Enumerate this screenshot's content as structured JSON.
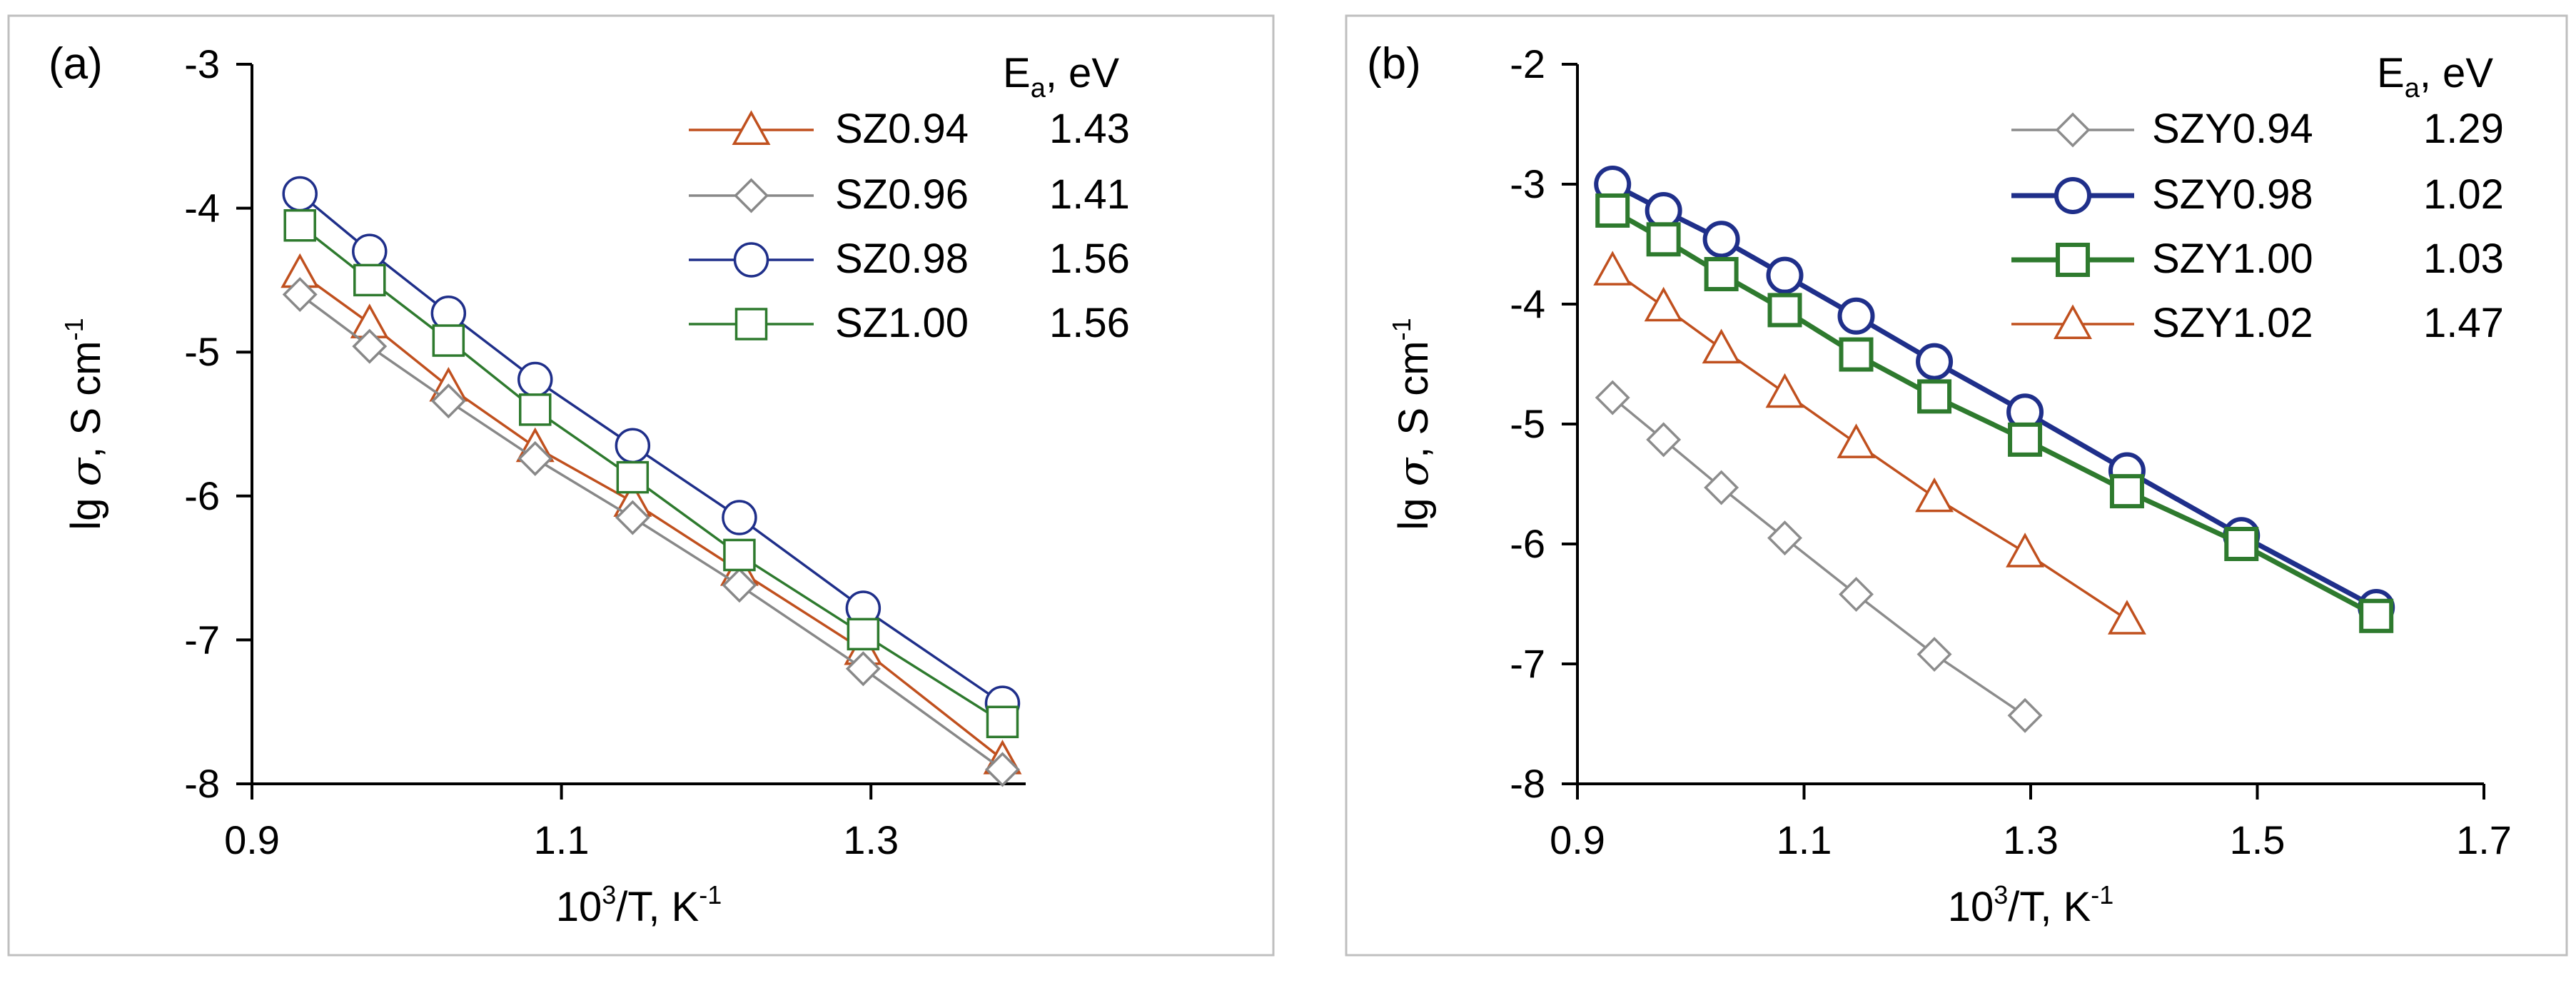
{
  "chart_data": [
    {
      "type": "line",
      "panel_label": "(a)",
      "xlabel": "10³/T, K⁻¹",
      "xlabel_base": "10",
      "xlabel_sup": "3",
      "xlabel_mid": "/T, K",
      "xlabel_sup2": "-1",
      "ylabel": "lg σ, S cm⁻¹",
      "ylabel_prefix": "lg ",
      "ylabel_sigma": "σ",
      "ylabel_unit": ", S cm",
      "ylabel_sup": "-1",
      "xlim": [
        0.9,
        1.4
      ],
      "ylim": [
        -8,
        -3
      ],
      "xticks": [
        "0.9",
        "1.1",
        "1.3"
      ],
      "xtick_values": [
        0.9,
        1.1,
        1.3
      ],
      "yticks": [
        "-3",
        "-4",
        "-5",
        "-6",
        "-7",
        "-8"
      ],
      "ytick_values": [
        -3,
        -4,
        -5,
        -6,
        -7,
        -8
      ],
      "legend_title_base": "E",
      "legend_title_sub": "a",
      "legend_title_rest": ", eV",
      "series": [
        {
          "name": "SZ0.94",
          "ea": "1.43",
          "color": "#c0501e",
          "marker": "triangle",
          "bold": false,
          "x": [
            0.931,
            0.976,
            1.027,
            1.083,
            1.146,
            1.215,
            1.295,
            1.385
          ],
          "y": [
            -4.45,
            -4.8,
            -5.24,
            -5.66,
            -6.04,
            -6.52,
            -7.07,
            -7.83
          ]
        },
        {
          "name": "SZ0.96",
          "ea": "1.41",
          "color": "#888888",
          "marker": "diamond",
          "bold": false,
          "x": [
            0.931,
            0.976,
            1.027,
            1.083,
            1.146,
            1.215,
            1.295,
            1.385
          ],
          "y": [
            -4.6,
            -4.96,
            -5.34,
            -5.74,
            -6.15,
            -6.62,
            -7.2,
            -7.9
          ]
        },
        {
          "name": "SZ0.98",
          "ea": "1.56",
          "color": "#1f2f8a",
          "marker": "circle",
          "bold": false,
          "x": [
            0.931,
            0.976,
            1.027,
            1.083,
            1.146,
            1.215,
            1.295,
            1.385
          ],
          "y": [
            -3.9,
            -4.3,
            -4.73,
            -5.19,
            -5.65,
            -6.15,
            -6.78,
            -7.44
          ]
        },
        {
          "name": "SZ1.00",
          "ea": "1.56",
          "color": "#2e7a2e",
          "marker": "square",
          "bold": false,
          "x": [
            0.931,
            0.976,
            1.027,
            1.083,
            1.146,
            1.215,
            1.295,
            1.385
          ],
          "y": [
            -4.12,
            -4.5,
            -4.92,
            -5.4,
            -5.87,
            -6.41,
            -6.96,
            -7.57
          ]
        }
      ]
    },
    {
      "type": "line",
      "panel_label": "(b)",
      "xlabel": "10³/T, K⁻¹",
      "xlabel_base": "10",
      "xlabel_sup": "3",
      "xlabel_mid": "/T, K",
      "xlabel_sup2": "-1",
      "ylabel": "lg σ, S cm⁻¹",
      "ylabel_prefix": "lg ",
      "ylabel_sigma": "σ",
      "ylabel_unit": ", S cm",
      "ylabel_sup": "-1",
      "xlim": [
        0.9,
        1.7
      ],
      "ylim": [
        -8,
        -2
      ],
      "xticks": [
        "0.9",
        "1.1",
        "1.3",
        "1.5",
        "1.7"
      ],
      "xtick_values": [
        0.9,
        1.1,
        1.3,
        1.5,
        1.7
      ],
      "yticks": [
        "-2",
        "-3",
        "-4",
        "-5",
        "-6",
        "-7",
        "-8"
      ],
      "ytick_values": [
        -2,
        -3,
        -4,
        -5,
        -6,
        -7,
        -8
      ],
      "legend_title_base": "E",
      "legend_title_sub": "a",
      "legend_title_rest": ", eV",
      "series": [
        {
          "name": "SZY0.94",
          "ea": "1.29",
          "color": "#8c8c8c",
          "marker": "diamond",
          "bold": false,
          "x": [
            0.931,
            0.976,
            1.027,
            1.083,
            1.146,
            1.215,
            1.295
          ],
          "y": [
            -4.78,
            -5.13,
            -5.53,
            -5.95,
            -6.42,
            -6.92,
            -7.43
          ]
        },
        {
          "name": "SZY0.98",
          "ea": "1.02",
          "color": "#1f2f8a",
          "marker": "circle",
          "bold": true,
          "x": [
            0.931,
            0.976,
            1.027,
            1.083,
            1.146,
            1.215,
            1.295,
            1.385,
            1.486,
            1.605
          ],
          "y": [
            -3.0,
            -3.22,
            -3.46,
            -3.76,
            -4.1,
            -4.48,
            -4.9,
            -5.39,
            -5.93,
            -6.53
          ]
        },
        {
          "name": "SZY1.00",
          "ea": "1.03",
          "color": "#2e7a2e",
          "marker": "square",
          "bold": true,
          "x": [
            0.931,
            0.976,
            1.027,
            1.083,
            1.146,
            1.215,
            1.295,
            1.385,
            1.486,
            1.605
          ],
          "y": [
            -3.22,
            -3.46,
            -3.75,
            -4.05,
            -4.42,
            -4.77,
            -5.13,
            -5.56,
            -6.0,
            -6.6
          ]
        },
        {
          "name": "SZY1.02",
          "ea": "1.47",
          "color": "#c0501e",
          "marker": "triangle",
          "bold": false,
          "x": [
            0.931,
            0.976,
            1.027,
            1.083,
            1.146,
            1.215,
            1.295,
            1.385
          ],
          "y": [
            -3.72,
            -4.02,
            -4.37,
            -4.74,
            -5.16,
            -5.61,
            -6.07,
            -6.63
          ]
        }
      ]
    }
  ]
}
